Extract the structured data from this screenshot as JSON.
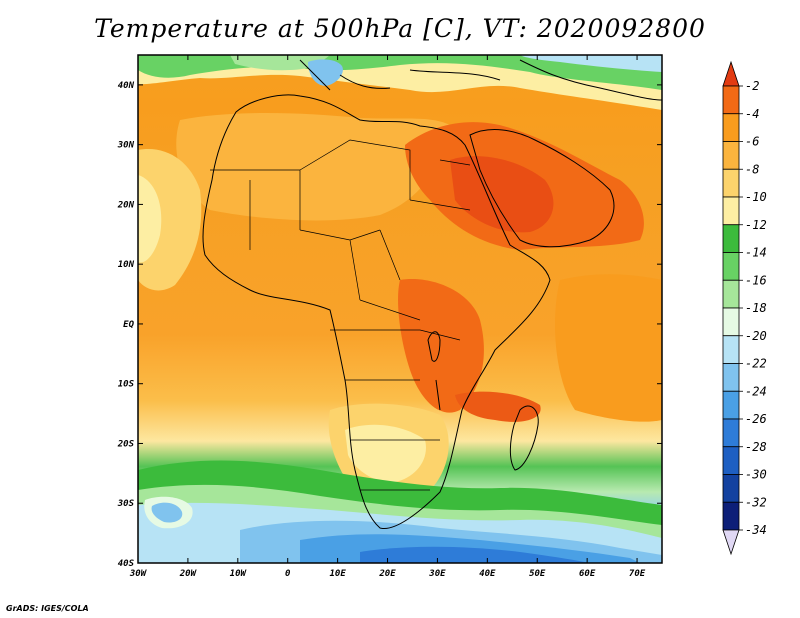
{
  "title": "Temperature at 500hPa [C], VT: 2020092800",
  "credit": "GrADS: IGES/COLA",
  "chart_data": {
    "type": "heatmap",
    "title": "Temperature at 500hPa [C], VT: 2020092800",
    "variable": "Temperature at 500hPa",
    "units": "C",
    "valid_time": "2020092800",
    "x_range": [
      -30,
      75
    ],
    "y_range": [
      -40,
      45
    ],
    "x_ticks": [
      {
        "value": -30,
        "label": "30W"
      },
      {
        "value": -20,
        "label": "20W"
      },
      {
        "value": -10,
        "label": "10W"
      },
      {
        "value": 0,
        "label": "0"
      },
      {
        "value": 10,
        "label": "10E"
      },
      {
        "value": 20,
        "label": "20E"
      },
      {
        "value": 30,
        "label": "30E"
      },
      {
        "value": 40,
        "label": "40E"
      },
      {
        "value": 50,
        "label": "50E"
      },
      {
        "value": 60,
        "label": "60E"
      },
      {
        "value": 70,
        "label": "70E"
      }
    ],
    "y_ticks": [
      {
        "value": 40,
        "label": "40N"
      },
      {
        "value": 30,
        "label": "30N"
      },
      {
        "value": 20,
        "label": "20N"
      },
      {
        "value": 10,
        "label": "10N"
      },
      {
        "value": 0,
        "label": "EQ"
      },
      {
        "value": -10,
        "label": "10S"
      },
      {
        "value": -20,
        "label": "20S"
      },
      {
        "value": -30,
        "label": "30S"
      },
      {
        "value": -40,
        "label": "40S"
      }
    ],
    "colorbar": {
      "levels": [
        {
          "label": "-2",
          "color": "#e23b12"
        },
        {
          "label": "-4",
          "color": "#f26a16"
        },
        {
          "label": "-6",
          "color": "#f99c1e"
        },
        {
          "label": "-8",
          "color": "#fbb43e"
        },
        {
          "label": "-10",
          "color": "#fcd36c"
        },
        {
          "label": "-12",
          "color": "#fdeea3"
        },
        {
          "label": "-14",
          "color": "#3cbb3c"
        },
        {
          "label": "-16",
          "color": "#68d264"
        },
        {
          "label": "-18",
          "color": "#a6e69a"
        },
        {
          "label": "-20",
          "color": "#e6fae4"
        },
        {
          "label": "-22",
          "color": "#b7e3f5"
        },
        {
          "label": "-24",
          "color": "#80c3ee"
        },
        {
          "label": "-26",
          "color": "#4aa0e5"
        },
        {
          "label": "-28",
          "color": "#2e7cd8"
        },
        {
          "label": "-30",
          "color": "#1e5fc2"
        },
        {
          "label": "-32",
          "color": "#1342a0"
        },
        {
          "label": "-34",
          "color": "#0d1f78"
        }
      ],
      "below_color": "#e0d8f4"
    }
  }
}
